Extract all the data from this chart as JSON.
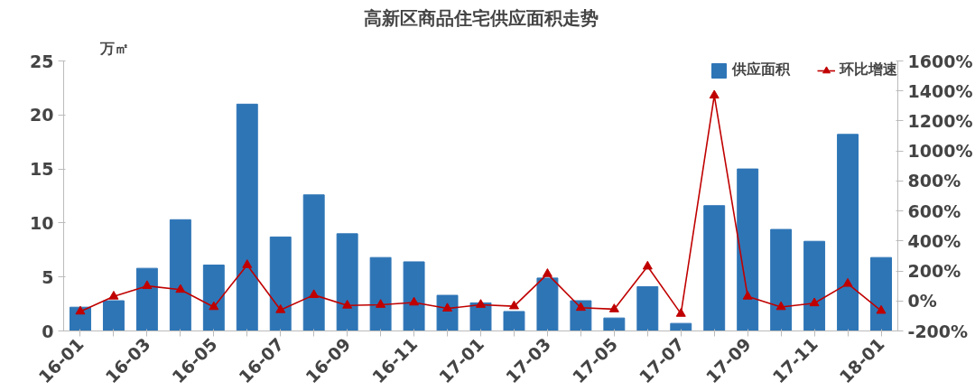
{
  "chart_data": {
    "type": "bar",
    "title": "高新区商品住宅供应面积走势",
    "ylabel": "万㎡",
    "categories": [
      "16-01",
      null,
      "16-03",
      null,
      "16-05",
      null,
      "16-07",
      null,
      "16-09",
      null,
      "16-11",
      null,
      "17-01",
      null,
      "17-03",
      null,
      "17-05",
      null,
      "17-07",
      null,
      "17-09",
      null,
      "17-11",
      null,
      "18-01"
    ],
    "series": [
      {
        "name": "供应面积",
        "color": "#2e75b6",
        "values": [
          2.2,
          2.8,
          5.8,
          10.3,
          6.1,
          21.0,
          8.7,
          12.6,
          9.0,
          6.8,
          6.4,
          3.3,
          2.6,
          1.8,
          4.9,
          2.8,
          1.2,
          4.1,
          0.7,
          11.6,
          15.0,
          9.4,
          8.3,
          18.2,
          6.8
        ]
      },
      {
        "name": "环比增速",
        "type": "line",
        "axis": "y2",
        "color": "#c00000",
        "marker": "triangle",
        "values": [
          -70,
          30,
          100,
          75,
          -40,
          240,
          -60,
          40,
          -30,
          -25,
          -10,
          -50,
          -25,
          -35,
          180,
          -45,
          -55,
          230,
          -85,
          1370,
          30,
          -40,
          -15,
          115,
          -65
        ]
      }
    ],
    "ylim": [
      0,
      25
    ],
    "yticks": [
      0,
      5,
      10,
      15,
      20,
      25
    ],
    "y2lim": [
      -200,
      1600
    ],
    "y2ticks": [
      {
        "value": -200,
        "label": "-200%"
      },
      {
        "value": 0,
        "label": "0%"
      },
      {
        "value": 200,
        "label": "200%"
      },
      {
        "value": 400,
        "label": "400%"
      },
      {
        "value": 600,
        "label": "600%"
      },
      {
        "value": 800,
        "label": "800%"
      },
      {
        "value": 1000,
        "label": "1000%"
      },
      {
        "value": 1200,
        "label": "1200%"
      },
      {
        "value": 1400,
        "label": "1400%"
      },
      {
        "value": 1600,
        "label": "1600%"
      }
    ],
    "grid": false,
    "legend": "top right"
  }
}
